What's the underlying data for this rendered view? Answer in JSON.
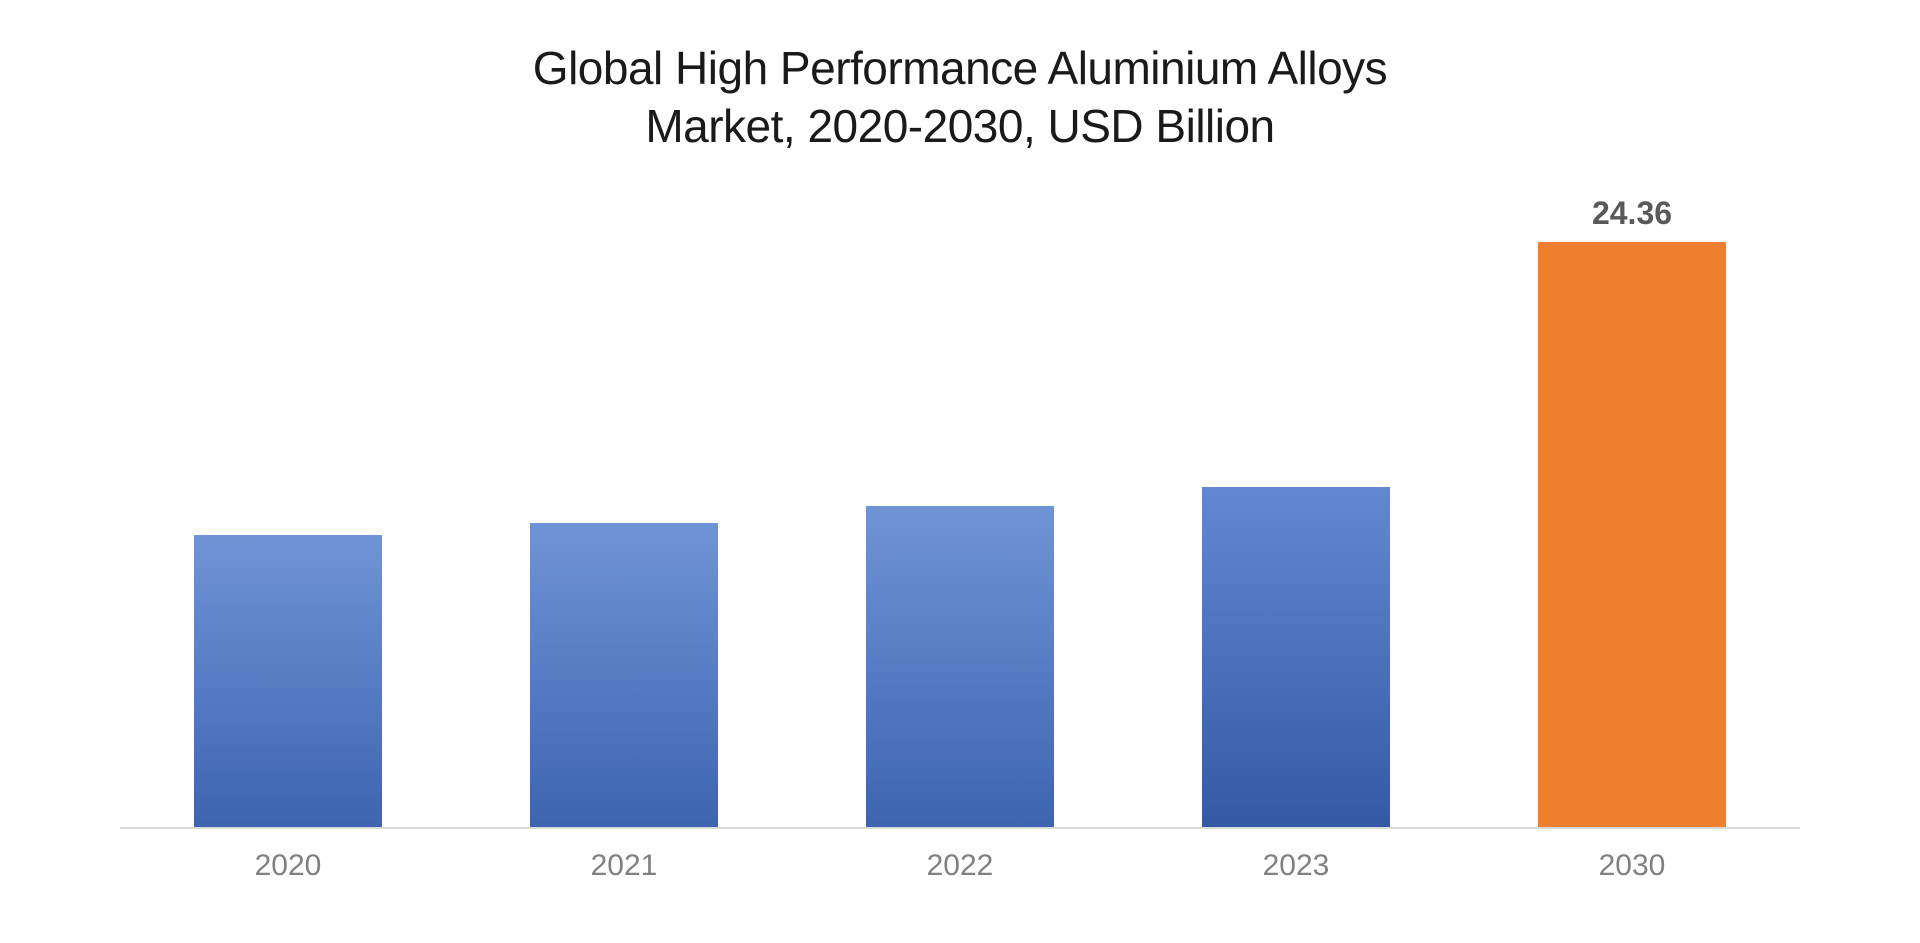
{
  "chart": {
    "type": "bar",
    "title_line1": "Global High Performance Aluminium Alloys",
    "title_line2": "Market, 2020-2030, USD Billion",
    "title_fontsize": 46,
    "title_color": "#1a1a1a",
    "background_color": "#ffffff",
    "axis_line_color": "#d9d9d9",
    "x_label_color": "#808080",
    "x_label_fontsize": 30,
    "data_label_fontsize": 32,
    "data_label_color": "#595959",
    "y_max": 26,
    "bars": [
      {
        "category": "2020",
        "value": 12.0,
        "show_label": false,
        "label": "",
        "fill_top": "#6f94d6",
        "fill_bottom": "#3d64b0"
      },
      {
        "category": "2021",
        "value": 12.5,
        "show_label": false,
        "label": "",
        "fill_top": "#6f94d6",
        "fill_bottom": "#3d64b0"
      },
      {
        "category": "2022",
        "value": 13.2,
        "show_label": false,
        "label": "",
        "fill_top": "#6f94d6",
        "fill_bottom": "#3d64b0"
      },
      {
        "category": "2023",
        "value": 14.0,
        "show_label": false,
        "label": "",
        "fill_top": "#6288d0",
        "fill_bottom": "#345aa6"
      },
      {
        "category": "2030",
        "value": 24.36,
        "show_label": true,
        "label": "24.36",
        "fill_top": "#ef7e2e",
        "fill_bottom": "#ef7e2e"
      }
    ]
  }
}
